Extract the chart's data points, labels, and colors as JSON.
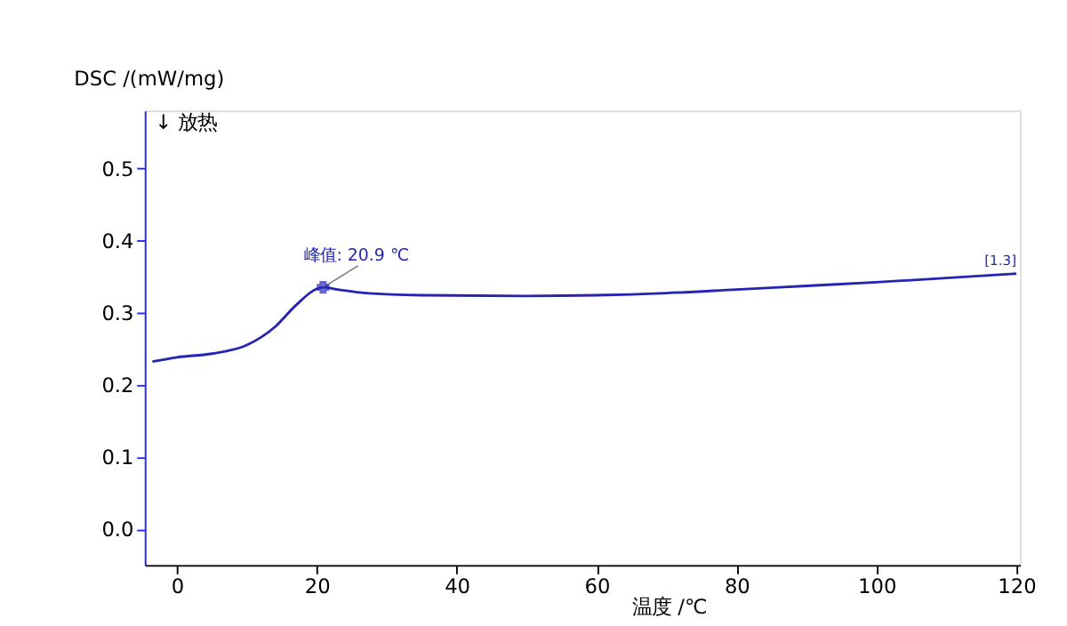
{
  "chart_data": {
    "type": "line",
    "xlabel": "温度 /℃",
    "ylabel": "DSC /(mW/mg)",
    "x": [
      -3.5,
      0,
      5,
      10,
      14,
      17,
      20,
      20.9,
      23,
      27,
      35,
      50,
      60,
      70,
      80,
      90,
      100,
      110,
      120
    ],
    "series": [
      {
        "color": "#2424b4",
        "values": [
          0.232,
          0.238,
          0.243,
          0.255,
          0.28,
          0.31,
          0.333,
          0.335,
          0.332,
          0.327,
          0.324,
          0.323,
          0.324,
          0.327,
          0.332,
          0.337,
          0.342,
          0.348,
          0.354
        ]
      }
    ],
    "xlim": [
      -4.6,
      120.5
    ],
    "ylim": [
      -0.05,
      0.58
    ],
    "xticks": [
      0,
      20,
      40,
      60,
      80,
      100,
      120
    ],
    "yticks": [
      {
        "value": 0,
        "label": "0.0"
      },
      {
        "value": 0.1,
        "label": "0.1"
      },
      {
        "value": 0.2,
        "label": "0.2"
      },
      {
        "value": 0.3,
        "label": "0.3"
      },
      {
        "value": 0.4,
        "label": "0.4"
      },
      {
        "value": 0.5,
        "label": "0.5"
      }
    ],
    "grid": false,
    "marker": "none",
    "line_style": "solid",
    "annotations": [
      {
        "text": "峰值: 20.9 ℃",
        "x": 20.9,
        "y": 0.335
      },
      {
        "text": "[1.3]",
        "x": 120,
        "y": 0.354
      },
      "↓ 放热"
    ]
  }
}
